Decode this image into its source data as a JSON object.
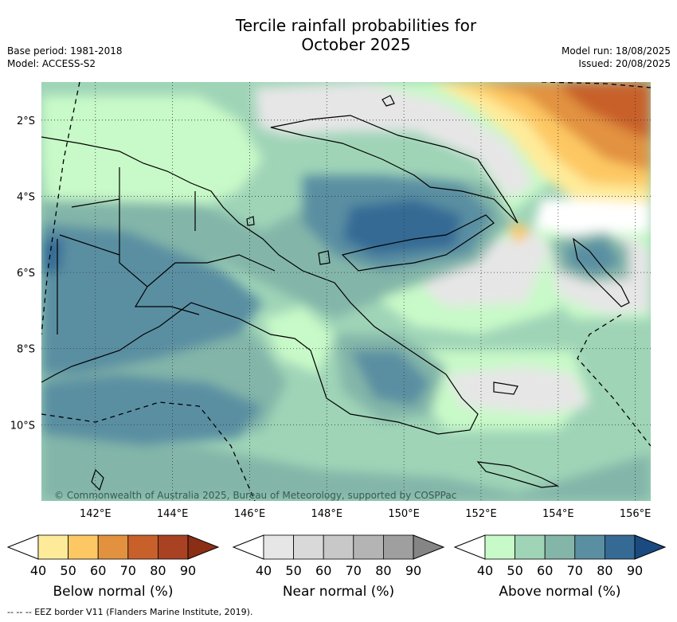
{
  "title_line1": "Tercile rainfall probabilities for",
  "title_line2": "October 2025",
  "meta": {
    "base_period": "Base period: 1981-2018",
    "model": "Model: ACCESS-S2",
    "model_run": "Model run: 18/08/2025",
    "issued": "Issued: 20/08/2025"
  },
  "copyright": "© Commonwealth of Australia 2025, Bureau of Meteorology, supported by COSPPac",
  "footer": "-- -- -- EEZ border V11 (Flanders Marine Institute, 2019).",
  "map": {
    "lon_range": [
      140.6,
      156.4
    ],
    "lat_range": [
      -12.0,
      -1.0
    ],
    "lon_ticks": [
      "142°E",
      "144°E",
      "146°E",
      "148°E",
      "150°E",
      "152°E",
      "154°E",
      "156°E"
    ],
    "lat_ticks": [
      "2°S",
      "4°S",
      "6°S",
      "8°S",
      "10°S"
    ],
    "grid": true
  },
  "colorbars": [
    {
      "label": "Below normal (%)",
      "ticks": [
        "40",
        "50",
        "60",
        "70",
        "80",
        "90"
      ],
      "colors": [
        "#ffffff",
        "#feeb9a",
        "#fdc864",
        "#e2923f",
        "#c8602c",
        "#a94223",
        "#8b2e16"
      ]
    },
    {
      "label": "Near normal (%)",
      "ticks": [
        "40",
        "50",
        "60",
        "70",
        "80",
        "90"
      ],
      "colors": [
        "#ffffff",
        "#e6e6e6",
        "#d9d9d9",
        "#c8c8c8",
        "#b4b4b4",
        "#9f9f9f",
        "#858585"
      ]
    },
    {
      "label": "Above normal (%)",
      "ticks": [
        "40",
        "50",
        "60",
        "70",
        "80",
        "90"
      ],
      "colors": [
        "#ffffff",
        "#c8f9c8",
        "#9fd4b7",
        "#83b6a9",
        "#5a8fa2",
        "#356a95",
        "#1a4a80"
      ]
    }
  ]
}
